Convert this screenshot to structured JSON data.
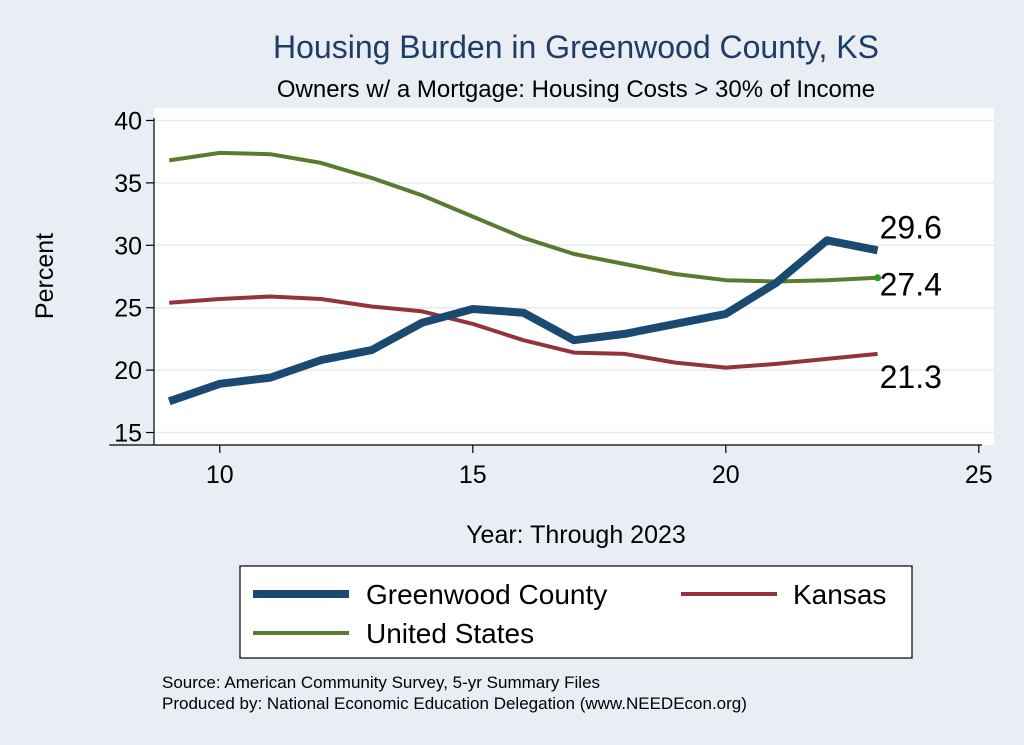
{
  "chart_data": {
    "type": "line",
    "title": "Housing Burden in Greenwood County, KS",
    "subtitle": "Owners w/ a Mortgage: Housing Costs > 30% of Income",
    "xlabel": "Year: Through 2023",
    "ylabel": "Percent",
    "xlim": [
      8.7,
      25.3
    ],
    "ylim": [
      14,
      41
    ],
    "xticks": [
      10,
      15,
      20,
      25
    ],
    "yticks": [
      15,
      20,
      25,
      30,
      35,
      40
    ],
    "grid": true,
    "legend_position": "bottom",
    "x": [
      9,
      10,
      11,
      12,
      13,
      14,
      15,
      16,
      17,
      18,
      19,
      20,
      21,
      22,
      23
    ],
    "series": [
      {
        "name": "Greenwood County",
        "color": "#1a4a72",
        "values": [
          17.5,
          18.9,
          19.4,
          20.8,
          21.6,
          23.8,
          24.9,
          24.6,
          22.4,
          22.9,
          23.7,
          24.5,
          27.0,
          30.4,
          29.6
        ],
        "end_label": "29.6"
      },
      {
        "name": "Kansas",
        "color": "#93343a",
        "values": [
          25.4,
          25.7,
          25.9,
          25.7,
          25.1,
          24.7,
          23.7,
          22.4,
          21.4,
          21.3,
          20.6,
          20.2,
          20.5,
          20.9,
          21.3
        ],
        "end_label": "21.3"
      },
      {
        "name": "United States",
        "color": "#5a7a2f",
        "values": [
          36.8,
          37.4,
          37.3,
          36.6,
          35.4,
          34.0,
          32.3,
          30.6,
          29.3,
          28.5,
          27.7,
          27.2,
          27.1,
          27.2,
          27.4
        ],
        "end_label": "27.4"
      }
    ]
  },
  "source_text": "Source: American Community Survey, 5-yr Summary Files",
  "producer_text": "Produced by: National Economic Education Delegation (www.NEEDEcon.org)"
}
